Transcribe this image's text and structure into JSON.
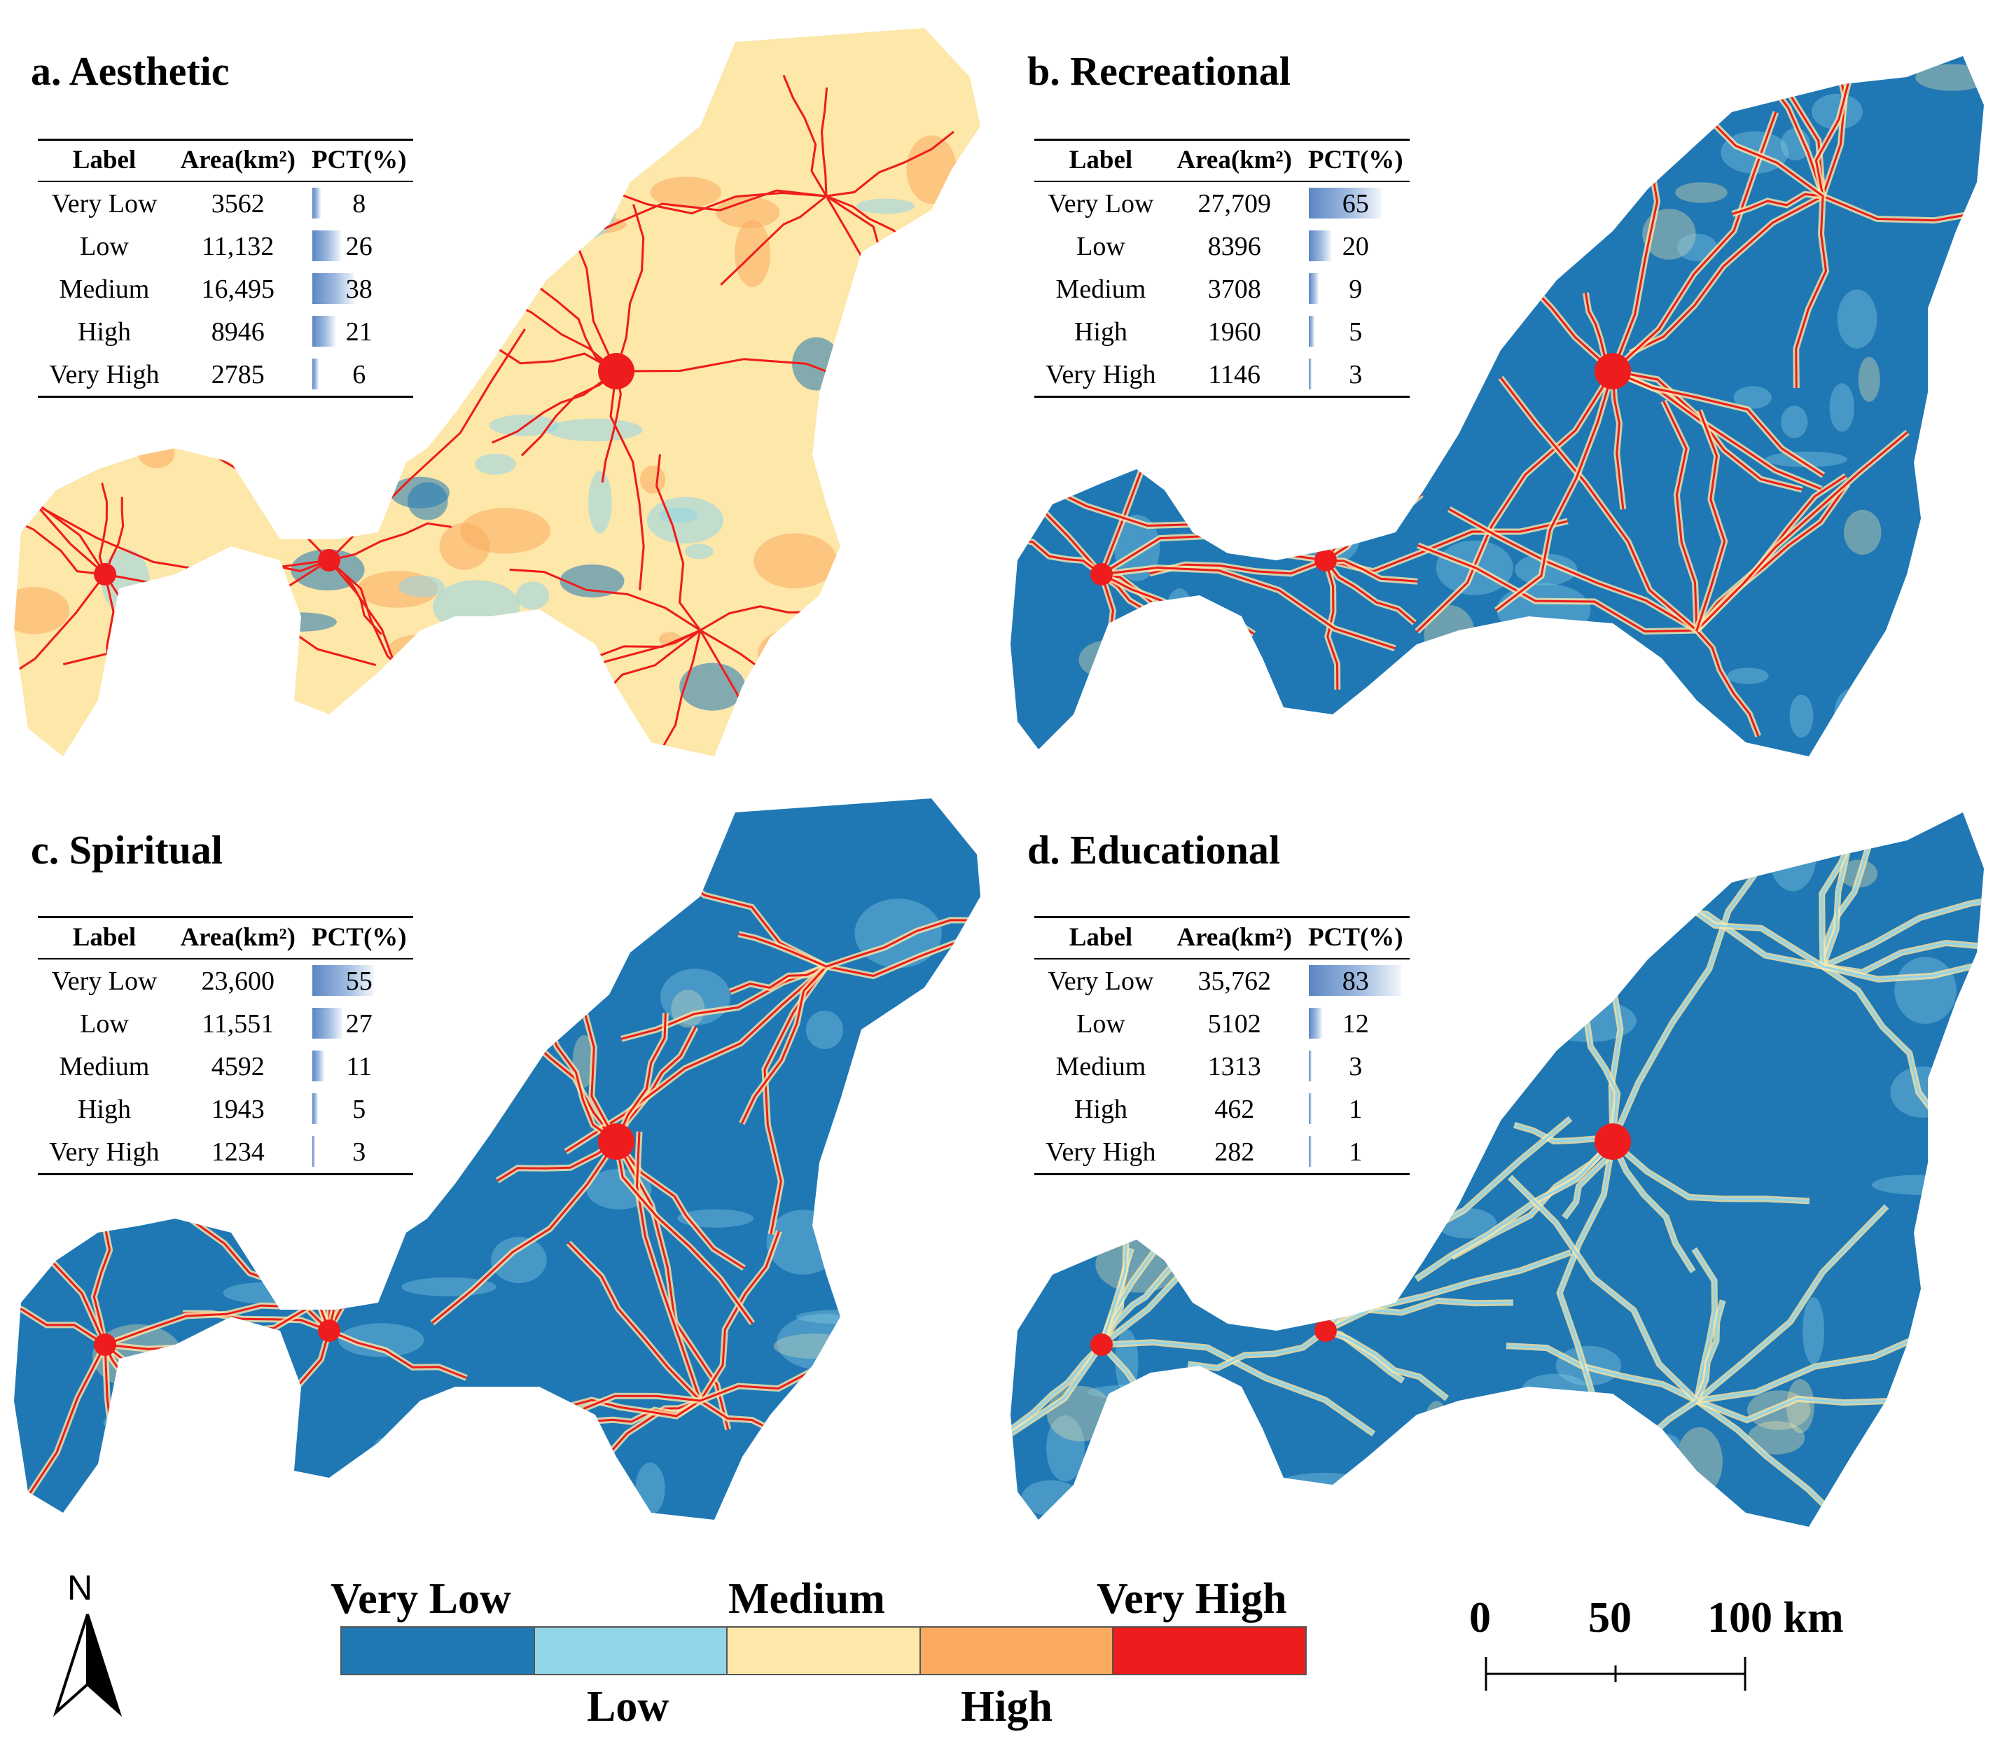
{
  "colors": {
    "very_low": "#1f78b4",
    "low": "#91d5e8",
    "medium": "#fde7a9",
    "high": "#fbab5f",
    "very_high": "#ee1c1c"
  },
  "table_headers": {
    "label": "Label",
    "area": "Area(km²)",
    "pct": "PCT(%)"
  },
  "panels": [
    {
      "title": "a. Aesthetic",
      "dominant_class": "medium",
      "rows": [
        {
          "label": "Very Low",
          "area": "3562",
          "pct": 8
        },
        {
          "label": "Low",
          "area": "11,132",
          "pct": 26
        },
        {
          "label": "Medium",
          "area": "16,495",
          "pct": 38
        },
        {
          "label": "High",
          "area": "8946",
          "pct": 21
        },
        {
          "label": "Very High",
          "area": "2785",
          "pct": 6
        }
      ]
    },
    {
      "title": "b. Recreational",
      "dominant_class": "very_low",
      "rows": [
        {
          "label": "Very Low",
          "area": "27,709",
          "pct": 65
        },
        {
          "label": "Low",
          "area": "8396",
          "pct": 20
        },
        {
          "label": "Medium",
          "area": "3708",
          "pct": 9
        },
        {
          "label": "High",
          "area": "1960",
          "pct": 5
        },
        {
          "label": "Very High",
          "area": "1146",
          "pct": 3
        }
      ]
    },
    {
      "title": "c. Spiritual",
      "dominant_class": "very_low",
      "rows": [
        {
          "label": "Very Low",
          "area": "23,600",
          "pct": 55
        },
        {
          "label": "Low",
          "area": "11,551",
          "pct": 27
        },
        {
          "label": "Medium",
          "area": "4592",
          "pct": 11
        },
        {
          "label": "High",
          "area": "1943",
          "pct": 5
        },
        {
          "label": "Very High",
          "area": "1234",
          "pct": 3
        }
      ]
    },
    {
      "title": "d. Educational",
      "dominant_class": "very_low",
      "rows": [
        {
          "label": "Very Low",
          "area": "35,762",
          "pct": 83
        },
        {
          "label": "Low",
          "area": "5102",
          "pct": 12
        },
        {
          "label": "Medium",
          "area": "1313",
          "pct": 3
        },
        {
          "label": "High",
          "area": "462",
          "pct": 1
        },
        {
          "label": "Very High",
          "area": "282",
          "pct": 1
        }
      ]
    }
  ],
  "legend": {
    "north": "N",
    "very_low": "Very Low",
    "low": "Low",
    "medium": "Medium",
    "high": "High",
    "very_high": "Very High"
  },
  "scale": {
    "zero": "0",
    "mid": "50",
    "end": "100 km"
  }
}
